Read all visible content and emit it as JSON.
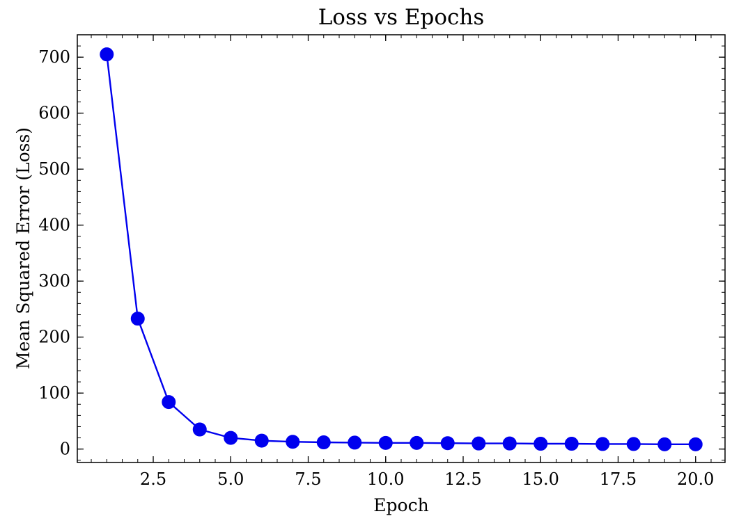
{
  "chart_data": {
    "type": "line",
    "title": "Loss vs Epochs",
    "xlabel": "Epoch",
    "ylabel": "Mean Squared Error (Loss)",
    "xlim": [
      0.05,
      20.95
    ],
    "ylim": [
      -24,
      740
    ],
    "x_ticks": [
      2.5,
      5.0,
      7.5,
      10.0,
      12.5,
      15.0,
      17.5,
      20.0
    ],
    "x_tick_labels": [
      "2.5",
      "5.0",
      "7.5",
      "10.0",
      "12.5",
      "15.0",
      "17.5",
      "20.0"
    ],
    "x_minor_step": 0.5,
    "y_ticks": [
      0,
      100,
      200,
      300,
      400,
      500,
      600,
      700
    ],
    "y_tick_labels": [
      "0",
      "100",
      "200",
      "300",
      "400",
      "500",
      "600",
      "700"
    ],
    "y_minor_step": 20,
    "grid": false,
    "legend": "none",
    "series": [
      {
        "color": "#0000ee",
        "marker": "circle",
        "x": [
          1,
          2,
          3,
          4,
          5,
          6,
          7,
          8,
          9,
          10,
          11,
          12,
          13,
          14,
          15,
          16,
          17,
          18,
          19,
          20
        ],
        "y": [
          705,
          233,
          84,
          35,
          20,
          15,
          13,
          12,
          11.5,
          11,
          11,
          10.5,
          10,
          10,
          9.5,
          9.5,
          9,
          9,
          8.5,
          8.5
        ]
      }
    ]
  }
}
